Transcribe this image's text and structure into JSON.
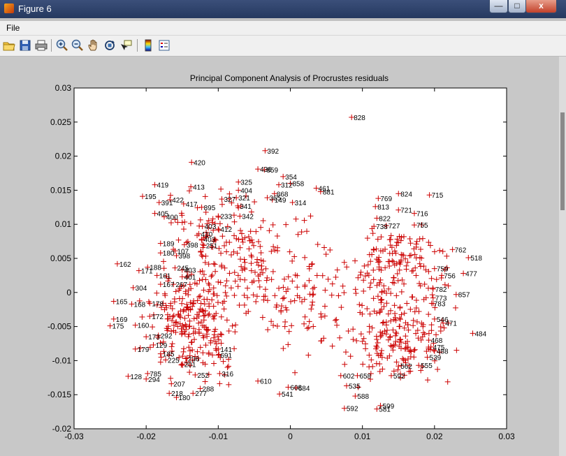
{
  "window": {
    "title": "Figure 6",
    "minimize_glyph": "—",
    "maximize_glyph": "□",
    "close_glyph": "x"
  },
  "menu": {
    "file_label": "File"
  },
  "toolbar": {
    "icons": [
      "open-icon",
      "save-icon",
      "print-icon",
      "zoom-in-icon",
      "zoom-out-icon",
      "pan-icon",
      "rotate-3d-icon",
      "data-cursor-icon",
      "colorbar-icon",
      "legend-icon"
    ]
  },
  "colors": {
    "marker": "#cc0000",
    "axes_bg": "#ffffff",
    "figure_bg": "#c8c8c8",
    "text": "#000000"
  },
  "chart_data": {
    "type": "scatter",
    "title": "Principal Component Analysis of Procrustes residuals",
    "xlabel": "",
    "ylabel": "",
    "xlim": [
      -0.03,
      0.03
    ],
    "ylim": [
      -0.02,
      0.03
    ],
    "xticks": [
      "-0.03",
      "-0.02",
      "-0.01",
      "0",
      "0.01",
      "0.02",
      "0.03"
    ],
    "yticks": [
      "-0.02",
      "-0.015",
      "-0.01",
      "-0.005",
      "0",
      "0.005",
      "0.01",
      "0.015",
      "0.02",
      "0.025",
      "0.03"
    ],
    "grid": false,
    "marker": "+",
    "labeled_points": [
      {
        "label": "828",
        "x": 0.0085,
        "y": 0.0257
      },
      {
        "label": "392",
        "x": -0.0035,
        "y": 0.0208
      },
      {
        "label": "420",
        "x": -0.0137,
        "y": 0.0191
      },
      {
        "label": "436",
        "x": -0.0045,
        "y": 0.0181
      },
      {
        "label": "859",
        "x": -0.0036,
        "y": 0.018
      },
      {
        "label": "354",
        "x": -0.001,
        "y": 0.017
      },
      {
        "label": "858",
        "x": 0.0,
        "y": 0.016
      },
      {
        "label": "312",
        "x": -0.0016,
        "y": 0.0158
      },
      {
        "label": "325",
        "x": -0.0072,
        "y": 0.0162
      },
      {
        "label": "419",
        "x": -0.0188,
        "y": 0.0158
      },
      {
        "label": "413",
        "x": -0.0138,
        "y": 0.0155
      },
      {
        "label": "461",
        "x": 0.0036,
        "y": 0.0153
      },
      {
        "label": "881",
        "x": 0.0042,
        "y": 0.0148
      },
      {
        "label": "404",
        "x": -0.0072,
        "y": 0.015
      },
      {
        "label": "824",
        "x": 0.015,
        "y": 0.0145
      },
      {
        "label": "715",
        "x": 0.0193,
        "y": 0.0143
      },
      {
        "label": "195",
        "x": -0.0205,
        "y": 0.0141
      },
      {
        "label": "868",
        "x": -0.0022,
        "y": 0.0145
      },
      {
        "label": "321",
        "x": -0.0075,
        "y": 0.0139
      },
      {
        "label": "327",
        "x": -0.0095,
        "y": 0.0137
      },
      {
        "label": "365",
        "x": -0.0032,
        "y": 0.0139
      },
      {
        "label": "149",
        "x": -0.0025,
        "y": 0.0136
      },
      {
        "label": "769",
        "x": 0.0122,
        "y": 0.0138
      },
      {
        "label": "422",
        "x": -0.0167,
        "y": 0.0136
      },
      {
        "label": "391",
        "x": -0.0182,
        "y": 0.0132
      },
      {
        "label": "314",
        "x": 0.0003,
        "y": 0.0132
      },
      {
        "label": "417",
        "x": -0.0148,
        "y": 0.013
      },
      {
        "label": "341",
        "x": -0.0073,
        "y": 0.0127
      },
      {
        "label": "895",
        "x": -0.0123,
        "y": 0.0125
      },
      {
        "label": "813",
        "x": 0.0118,
        "y": 0.0126
      },
      {
        "label": "721",
        "x": 0.015,
        "y": 0.0121
      },
      {
        "label": "405",
        "x": -0.0188,
        "y": 0.0116
      },
      {
        "label": "400",
        "x": -0.0175,
        "y": 0.0111
      },
      {
        "label": "716",
        "x": 0.0172,
        "y": 0.0116
      },
      {
        "label": "822",
        "x": 0.012,
        "y": 0.0109
      },
      {
        "label": "233",
        "x": -0.01,
        "y": 0.0112
      },
      {
        "label": "342",
        "x": -0.007,
        "y": 0.0112
      },
      {
        "label": "727",
        "x": 0.0133,
        "y": 0.0098
      },
      {
        "label": "738",
        "x": 0.0116,
        "y": 0.0097
      },
      {
        "label": "755",
        "x": 0.0172,
        "y": 0.0099
      },
      {
        "label": "403",
        "x": -0.0122,
        "y": 0.0097
      },
      {
        "label": "412",
        "x": -0.01,
        "y": 0.0093
      },
      {
        "label": "410",
        "x": -0.0127,
        "y": 0.0086
      },
      {
        "label": "403",
        "x": -0.0123,
        "y": 0.0078
      },
      {
        "label": "762",
        "x": 0.0225,
        "y": 0.0063
      },
      {
        "label": "518",
        "x": 0.0247,
        "y": 0.0051
      },
      {
        "label": "189",
        "x": -0.018,
        "y": 0.0072
      },
      {
        "label": "398",
        "x": -0.0147,
        "y": 0.007
      },
      {
        "label": "251",
        "x": -0.012,
        "y": 0.0069
      },
      {
        "label": "180",
        "x": -0.018,
        "y": 0.0058
      },
      {
        "label": "107",
        "x": -0.016,
        "y": 0.0061
      },
      {
        "label": "398",
        "x": -0.0158,
        "y": 0.0054
      },
      {
        "label": "162",
        "x": -0.024,
        "y": 0.0042
      },
      {
        "label": "188",
        "x": -0.0198,
        "y": 0.0037
      },
      {
        "label": "171",
        "x": -0.021,
        "y": 0.0032
      },
      {
        "label": "245",
        "x": -0.016,
        "y": 0.0036
      },
      {
        "label": "403",
        "x": -0.015,
        "y": 0.0033
      },
      {
        "label": "161",
        "x": -0.0185,
        "y": 0.0025
      },
      {
        "label": "401",
        "x": -0.015,
        "y": 0.0023
      },
      {
        "label": "477",
        "x": 0.024,
        "y": 0.0028
      },
      {
        "label": "759",
        "x": 0.02,
        "y": 0.0035
      },
      {
        "label": "756",
        "x": 0.021,
        "y": 0.0025
      },
      {
        "label": "167",
        "x": -0.018,
        "y": 0.0012
      },
      {
        "label": "267",
        "x": -0.0162,
        "y": 0.0012
      },
      {
        "label": "304",
        "x": -0.0218,
        "y": 0.0007
      },
      {
        "label": "782",
        "x": 0.0198,
        "y": 0.0005
      },
      {
        "label": "857",
        "x": 0.023,
        "y": -0.0003
      },
      {
        "label": "773",
        "x": 0.0198,
        "y": -0.0008
      },
      {
        "label": "165",
        "x": -0.0245,
        "y": -0.0013
      },
      {
        "label": "168",
        "x": -0.022,
        "y": -0.0017
      },
      {
        "label": "178",
        "x": -0.0195,
        "y": -0.0016
      },
      {
        "label": "783",
        "x": 0.0196,
        "y": -0.0016
      },
      {
        "label": "172",
        "x": -0.0195,
        "y": -0.0035
      },
      {
        "label": "169",
        "x": -0.0245,
        "y": -0.0039
      },
      {
        "label": "546",
        "x": 0.02,
        "y": -0.0039
      },
      {
        "label": "471",
        "x": 0.0212,
        "y": -0.0045
      },
      {
        "label": "175",
        "x": -0.025,
        "y": -0.0049
      },
      {
        "label": "160",
        "x": -0.0215,
        "y": -0.0048
      },
      {
        "label": "484",
        "x": 0.0253,
        "y": -0.006
      },
      {
        "label": "173",
        "x": -0.02,
        "y": -0.0065
      },
      {
        "label": "292",
        "x": -0.0183,
        "y": -0.0063
      },
      {
        "label": "468",
        "x": 0.0192,
        "y": -0.007
      },
      {
        "label": "129",
        "x": -0.019,
        "y": -0.0077
      },
      {
        "label": "475",
        "x": 0.0195,
        "y": -0.008
      },
      {
        "label": "179",
        "x": -0.0215,
        "y": -0.0083
      },
      {
        "label": "488",
        "x": 0.02,
        "y": -0.0086
      },
      {
        "label": "185",
        "x": -0.018,
        "y": -0.009
      },
      {
        "label": "539",
        "x": 0.019,
        "y": -0.0095
      },
      {
        "label": "225",
        "x": -0.0173,
        "y": -0.0099
      },
      {
        "label": "236",
        "x": -0.0145,
        "y": -0.0097
      },
      {
        "label": "201",
        "x": -0.015,
        "y": -0.0105
      },
      {
        "label": "555",
        "x": 0.0178,
        "y": -0.0107
      },
      {
        "label": "562",
        "x": 0.015,
        "y": -0.0108
      },
      {
        "label": "691",
        "x": -0.01,
        "y": -0.0092
      },
      {
        "label": "141",
        "x": -0.01,
        "y": -0.0083
      },
      {
        "label": "785",
        "x": -0.0198,
        "y": -0.0119
      },
      {
        "label": "128",
        "x": -0.0225,
        "y": -0.0123
      },
      {
        "label": "294",
        "x": -0.02,
        "y": -0.0127
      },
      {
        "label": "252",
        "x": -0.0132,
        "y": -0.0121
      },
      {
        "label": "316",
        "x": -0.0098,
        "y": -0.0119
      },
      {
        "label": "592",
        "x": 0.014,
        "y": -0.0122
      },
      {
        "label": "207",
        "x": -0.0165,
        "y": -0.0134
      },
      {
        "label": "610",
        "x": -0.0045,
        "y": -0.013
      },
      {
        "label": "608",
        "x": -0.0003,
        "y": -0.0139
      },
      {
        "label": "684",
        "x": 0.0008,
        "y": -0.014
      },
      {
        "label": "288",
        "x": -0.0125,
        "y": -0.0141
      },
      {
        "label": "541",
        "x": -0.0015,
        "y": -0.0149
      },
      {
        "label": "218",
        "x": -0.0168,
        "y": -0.0148
      },
      {
        "label": "277",
        "x": -0.0135,
        "y": -0.0148
      },
      {
        "label": "180",
        "x": -0.0158,
        "y": -0.0154
      },
      {
        "label": "588",
        "x": 0.009,
        "y": -0.0152
      },
      {
        "label": "599",
        "x": 0.0125,
        "y": -0.0166
      },
      {
        "label": "592",
        "x": 0.0075,
        "y": -0.017
      },
      {
        "label": "581",
        "x": 0.012,
        "y": -0.0171
      },
      {
        "label": "535",
        "x": 0.0078,
        "y": -0.0137
      },
      {
        "label": "602",
        "x": 0.007,
        "y": -0.0122
      },
      {
        "label": "658",
        "x": 0.0093,
        "y": -0.0122
      }
    ]
  }
}
